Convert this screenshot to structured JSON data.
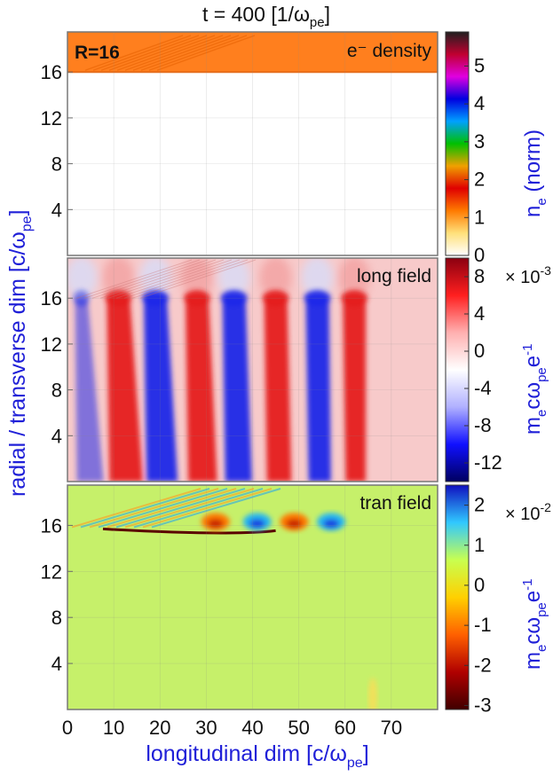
{
  "title": {
    "main": "t = 400 [1/ω",
    "sub": "pe",
    "tail": "]"
  },
  "xaxis": {
    "label": "longitudinal dim [c/ω",
    "label_sub": "pe",
    "label_tail": "]",
    "ticks": [
      "0",
      "10",
      "20",
      "30",
      "40",
      "50",
      "60",
      "70"
    ],
    "range": [
      0,
      80
    ]
  },
  "yaxis": {
    "label": "radial / transverse dim [c/ω",
    "label_sub": "pe",
    "label_tail": "]",
    "ticks": [
      "4",
      "8",
      "12",
      "16"
    ],
    "range": [
      0,
      19.5
    ]
  },
  "panels": [
    {
      "id": "density",
      "label": "e⁻  density",
      "annotation": "R=16",
      "colorbar": {
        "ticks": [
          "0",
          "1",
          "2",
          "3",
          "4",
          "5"
        ],
        "exponent": "",
        "label_main": "n",
        "label_sub": "e",
        "label_tail": " (norm)",
        "colors": [
          "#ffffff",
          "#ffe07a",
          "#ff7a00",
          "#e00000",
          "#f0a000",
          "#00c000",
          "#00a0ff",
          "#0000e0",
          "#e000e0",
          "#c00030",
          "#202020"
        ]
      }
    },
    {
      "id": "long",
      "label": "long field",
      "colorbar": {
        "ticks": [
          "8",
          "4",
          "0",
          "-4",
          "-8",
          "-12"
        ],
        "exponent": "× 10",
        "exponent_power": "-3",
        "label_main": "m",
        "label_sub1": "e",
        "label_mid": "cω",
        "label_sub2": "pe",
        "label_e": "e",
        "label_sup": "-1",
        "colors": [
          "#8b0010",
          "#ff1f1f",
          "#ffb0b0",
          "#ffffff",
          "#b0b0ff",
          "#1010ff",
          "#000060"
        ]
      }
    },
    {
      "id": "tran",
      "label": "tran field",
      "colorbar": {
        "ticks": [
          "2",
          "1",
          "0",
          "-1",
          "-2",
          "-3"
        ],
        "exponent": "× 10",
        "exponent_power": "-2",
        "label_main": "m",
        "label_sub1": "e",
        "label_mid": "cω",
        "label_sub2": "pe",
        "label_e": "e",
        "label_sup": "-1",
        "colors": [
          "#1010c0",
          "#30c8ff",
          "#c8ff50",
          "#ffd000",
          "#ff6000",
          "#b00000",
          "#400000"
        ]
      }
    }
  ],
  "chart_data": {
    "type": "heatmap",
    "title": "t = 400 [1/ωpe]",
    "xlabel": "longitudinal dim [c/ωpe]",
    "ylabel": "radial / transverse dim [c/ωpe]",
    "xlim": [
      0,
      80
    ],
    "ylim": [
      0,
      19.5
    ],
    "panels": [
      {
        "name": "e⁻ density",
        "colorbar_range": [
          0,
          5.9
        ],
        "unit": "ne (norm)",
        "plasma_boundary_y": 16,
        "fill_value_above_boundary": 1.2,
        "fill_value_below_boundary": 0
      },
      {
        "name": "long field",
        "colorbar_range": [
          -0.014,
          0.01
        ],
        "unit": "mecωpe e-1",
        "stripes": [
          {
            "x": 3,
            "sign": -1
          },
          {
            "x": 11,
            "sign": 1
          },
          {
            "x": 19,
            "sign": -1
          },
          {
            "x": 28,
            "sign": 1
          },
          {
            "x": 36,
            "sign": -1
          },
          {
            "x": 45,
            "sign": 1
          },
          {
            "x": 54,
            "sign": -1
          },
          {
            "x": 62,
            "sign": 1
          }
        ]
      },
      {
        "name": "tran field",
        "colorbar_range": [
          -0.031,
          0.025
        ],
        "unit": "mecωpe e-1",
        "boundary_features": [
          {
            "x": 32,
            "sign": -1
          },
          {
            "x": 41,
            "sign": 1
          },
          {
            "x": 49,
            "sign": -1
          },
          {
            "x": 57,
            "sign": 1
          }
        ]
      }
    ]
  }
}
